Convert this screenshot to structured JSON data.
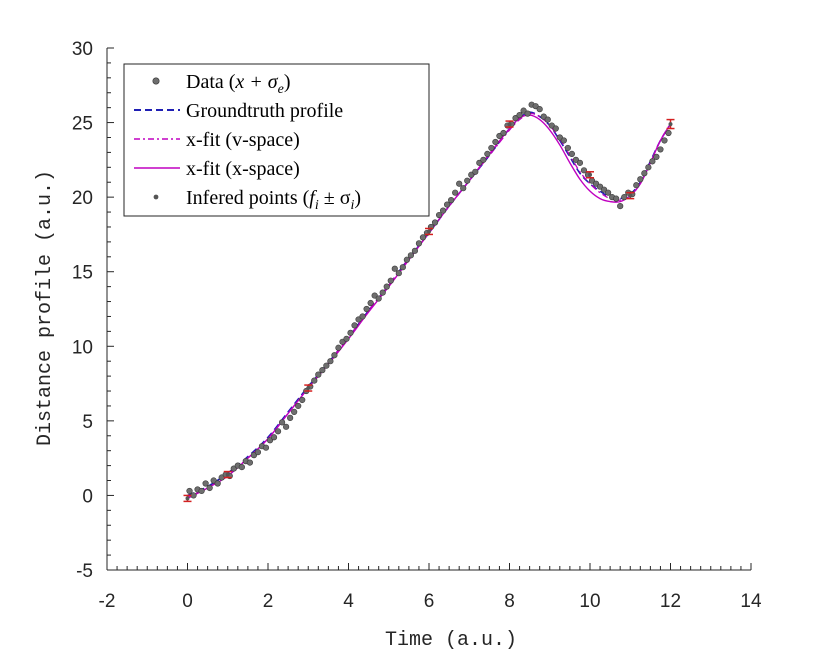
{
  "chart_data": {
    "type": "line",
    "title": "",
    "xlabel": "Time (a.u.)",
    "ylabel": "Distance profile (a.u.)",
    "xlim": [
      -2,
      14
    ],
    "ylim": [
      -5,
      30
    ],
    "xticks": [
      -2,
      0,
      2,
      4,
      6,
      8,
      10,
      12,
      14
    ],
    "yticks": [
      -5,
      0,
      5,
      10,
      15,
      20,
      25,
      30
    ],
    "xtick_labels": [
      "-2",
      "0",
      "2",
      "4",
      "6",
      "8",
      "10",
      "12",
      "14"
    ],
    "ytick_labels": [
      "-5",
      "0",
      "5",
      "10",
      "15",
      "20",
      "25",
      "30"
    ],
    "grid": false,
    "legend_position": "top-left",
    "legend": {
      "data": {
        "text": "Data (",
        "math": "x + σ",
        "sub": "e",
        "close": ")"
      },
      "groundtruth": {
        "text": "Groundtruth profile"
      },
      "vfit": {
        "text": "x-fit (v-space)"
      },
      "xfit": {
        "text": "x-fit (x-space)"
      },
      "inferred": {
        "text": "Infered points (",
        "math": "f",
        "sub1": "i",
        "mid": " ± σ",
        "sub2": "i",
        "close": ")"
      }
    },
    "colors": {
      "data": "#6e6e6e",
      "groundtruth": "#1f1fb4",
      "vfit": "#c000c0",
      "xfit": "#c000c0",
      "inferred_errorbar": "#d42020",
      "inferred_point": "#555555"
    },
    "series": [
      {
        "name": "Groundtruth profile",
        "style": "dashed",
        "x": [
          0,
          0.5,
          1,
          1.5,
          2,
          2.5,
          3,
          3.5,
          4,
          4.5,
          5,
          5.5,
          6,
          6.5,
          7,
          7.5,
          8,
          8.25,
          8.5,
          8.75,
          9,
          9.25,
          9.5,
          9.75,
          10,
          10.25,
          10.5,
          10.75,
          11,
          11.25,
          11.5,
          11.75,
          12
        ],
        "y": [
          0,
          0.6,
          1.5,
          2.6,
          3.9,
          5.6,
          7.3,
          8.9,
          10.6,
          12.4,
          14.1,
          15.9,
          17.6,
          19.4,
          21.1,
          22.8,
          24.6,
          25.3,
          25.7,
          25.4,
          24.8,
          23.8,
          22.7,
          21.6,
          20.9,
          20.4,
          20.0,
          19.9,
          20.2,
          21.0,
          22.4,
          23.8,
          24.9
        ]
      },
      {
        "name": "x-fit (v-space)",
        "style": "dashdot",
        "x": [
          0,
          0.5,
          1,
          1.5,
          2,
          2.5,
          3,
          3.5,
          4,
          4.5,
          5,
          5.5,
          6,
          6.5,
          7,
          7.5,
          8,
          8.25,
          8.5,
          8.75,
          9,
          9.25,
          9.5,
          9.75,
          10,
          10.25,
          10.5,
          10.75,
          11,
          11.25,
          11.5,
          11.75,
          12
        ],
        "y": [
          -0.1,
          0.5,
          1.4,
          2.5,
          3.8,
          5.5,
          7.2,
          8.9,
          10.6,
          12.4,
          14.1,
          15.9,
          17.6,
          19.4,
          21.1,
          22.8,
          24.5,
          25.2,
          25.6,
          25.4,
          24.8,
          23.9,
          22.8,
          21.7,
          20.9,
          20.3,
          19.9,
          19.8,
          20.1,
          20.9,
          22.3,
          23.8,
          24.9
        ]
      },
      {
        "name": "x-fit (x-space)",
        "style": "solid",
        "x": [
          0,
          0.5,
          1,
          1.5,
          2,
          2.5,
          3,
          3.5,
          4,
          4.5,
          5,
          5.5,
          6,
          6.5,
          7,
          7.5,
          8,
          8.25,
          8.5,
          8.75,
          9,
          9.25,
          9.5,
          9.75,
          10,
          10.25,
          10.5,
          10.75,
          11,
          11.25,
          11.5,
          11.75,
          12
        ],
        "y": [
          -0.2,
          0.5,
          1.3,
          2.5,
          3.8,
          5.5,
          7.2,
          8.8,
          10.5,
          12.3,
          14.0,
          15.8,
          17.6,
          19.4,
          21.1,
          22.9,
          24.6,
          25.3,
          25.5,
          25.2,
          24.5,
          23.5,
          22.3,
          21.2,
          20.4,
          19.9,
          19.7,
          19.7,
          20.1,
          20.9,
          22.3,
          23.8,
          24.9
        ]
      }
    ],
    "data_points": {
      "name": "Data (x + σe)",
      "x": [
        0.05,
        0.15,
        0.25,
        0.35,
        0.45,
        0.55,
        0.65,
        0.75,
        0.85,
        0.95,
        1.05,
        1.15,
        1.25,
        1.35,
        1.45,
        1.55,
        1.65,
        1.75,
        1.85,
        1.95,
        2.05,
        2.15,
        2.25,
        2.35,
        2.45,
        2.55,
        2.65,
        2.75,
        2.85,
        2.95,
        3.05,
        3.15,
        3.25,
        3.35,
        3.45,
        3.55,
        3.65,
        3.75,
        3.85,
        3.95,
        4.05,
        4.15,
        4.25,
        4.35,
        4.45,
        4.55,
        4.65,
        4.75,
        4.85,
        4.95,
        5.05,
        5.15,
        5.25,
        5.35,
        5.45,
        5.55,
        5.65,
        5.75,
        5.85,
        5.95,
        6.05,
        6.15,
        6.25,
        6.35,
        6.45,
        6.55,
        6.65,
        6.75,
        6.85,
        6.95,
        7.05,
        7.15,
        7.25,
        7.35,
        7.45,
        7.55,
        7.65,
        7.75,
        7.85,
        7.95,
        8.05,
        8.15,
        8.25,
        8.35,
        8.45,
        8.55,
        8.65,
        8.75,
        8.85,
        8.95,
        9.05,
        9.15,
        9.25,
        9.35,
        9.45,
        9.55,
        9.65,
        9.75,
        9.85,
        9.95,
        10.05,
        10.15,
        10.25,
        10.35,
        10.45,
        10.55,
        10.65,
        10.75,
        10.85,
        10.95,
        11.05,
        11.15,
        11.25,
        11.35,
        11.45,
        11.55,
        11.65,
        11.75,
        11.85,
        11.95
      ],
      "y": [
        0.3,
        0.0,
        0.4,
        0.3,
        0.8,
        0.5,
        1.0,
        0.8,
        1.2,
        1.4,
        1.3,
        1.8,
        2.0,
        1.9,
        2.3,
        2.2,
        2.7,
        2.9,
        3.3,
        3.2,
        3.7,
        3.9,
        4.3,
        4.9,
        4.6,
        5.2,
        5.6,
        6.0,
        6.4,
        7.0,
        7.3,
        7.7,
        8.1,
        8.4,
        8.7,
        9.0,
        9.4,
        9.9,
        10.3,
        10.5,
        10.9,
        11.4,
        11.8,
        12.0,
        12.5,
        12.9,
        13.4,
        13.2,
        13.6,
        14.0,
        14.4,
        15.2,
        14.9,
        15.3,
        15.8,
        16.1,
        16.4,
        16.9,
        17.3,
        17.6,
        18.0,
        18.3,
        18.8,
        19.1,
        19.5,
        19.8,
        20.3,
        20.9,
        20.6,
        21.1,
        21.5,
        21.7,
        22.3,
        22.5,
        22.9,
        23.3,
        23.7,
        24.1,
        24.3,
        24.8,
        24.9,
        25.3,
        25.5,
        25.8,
        25.6,
        26.2,
        26.1,
        25.9,
        25.4,
        25.2,
        24.8,
        24.6,
        24.0,
        23.8,
        23.3,
        22.9,
        22.5,
        22.3,
        21.8,
        21.5,
        21.1,
        20.9,
        20.7,
        20.5,
        20.3,
        20.0,
        19.9,
        19.4,
        20.0,
        20.3,
        20.2,
        20.8,
        21.2,
        21.6,
        22.0,
        22.4,
        22.7,
        23.2,
        23.8,
        24.3
      ]
    },
    "inferred_points": {
      "name": "Infered points (fi ± σi)",
      "x": [
        0,
        1,
        3,
        6,
        8,
        10,
        11,
        12
      ],
      "y": [
        -0.2,
        1.4,
        7.2,
        17.7,
        24.9,
        21.5,
        20.1,
        24.9
      ],
      "err": [
        0.2,
        0.2,
        0.2,
        0.2,
        0.2,
        0.2,
        0.2,
        0.3
      ]
    }
  }
}
